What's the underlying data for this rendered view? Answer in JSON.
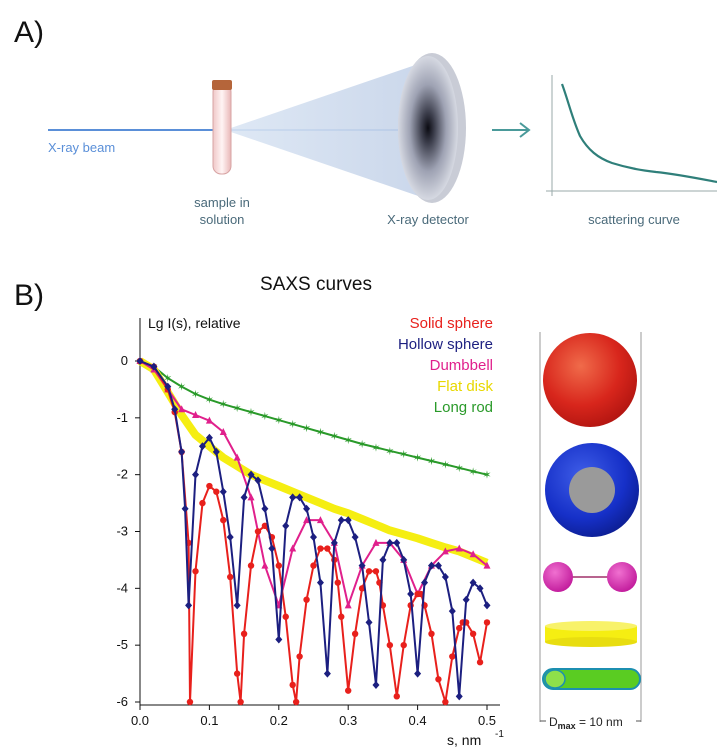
{
  "panel_a": {
    "label": "A)",
    "beam_label": "X-ray beam",
    "sample_label_1": "sample in",
    "sample_label_2": "solution",
    "detector_label": "X-ray detector",
    "curve_label": "scattering curve"
  },
  "panel_b": {
    "label": "B)",
    "dmax_prefix": "D",
    "dmax_sub": "max",
    "dmax_suffix": " = 10 nm"
  },
  "colors": {
    "solid_sphere": "#e8201c",
    "hollow_sphere": "#1c1f80",
    "dumbbell": "#e0208c",
    "flat_disk": "#f5ee12",
    "long_rod": "#2a9a2a",
    "beam": "#5a8fd8",
    "arrow": "#4a9a9a",
    "scatter_line": "#2f7f7a"
  },
  "chart_data": {
    "type": "line",
    "title": "SAXS curves",
    "xlabel": "s, nm",
    "xlabel_sup": "-1",
    "ylabel": "Lg I(s), relative",
    "xlim": [
      0.0,
      0.52
    ],
    "ylim": [
      -6,
      0.3
    ],
    "x_ticks": [
      "0.0",
      "0.1",
      "0.2",
      "0.3",
      "0.4",
      "0.5"
    ],
    "y_ticks": [
      "0",
      "-1",
      "-2",
      "-3",
      "-4",
      "-5",
      "-6"
    ],
    "grid": false,
    "legend_position": "top-right",
    "series": [
      {
        "name": "Solid sphere",
        "color_key": "solid_sphere",
        "marker": "circle",
        "x": [
          0.0,
          0.02,
          0.04,
          0.05,
          0.06,
          0.07,
          0.072,
          0.08,
          0.09,
          0.1,
          0.11,
          0.12,
          0.13,
          0.14,
          0.145,
          0.15,
          0.16,
          0.17,
          0.18,
          0.19,
          0.2,
          0.21,
          0.22,
          0.225,
          0.23,
          0.24,
          0.25,
          0.26,
          0.27,
          0.28,
          0.285,
          0.29,
          0.3,
          0.31,
          0.32,
          0.33,
          0.34,
          0.345,
          0.35,
          0.36,
          0.37,
          0.38,
          0.39,
          0.4,
          0.405,
          0.41,
          0.42,
          0.43,
          0.44,
          0.45,
          0.46,
          0.465,
          0.47,
          0.48,
          0.49,
          0.5
        ],
        "y": [
          0.0,
          -0.1,
          -0.5,
          -0.9,
          -1.6,
          -3.2,
          -6.0,
          -3.7,
          -2.5,
          -2.2,
          -2.3,
          -2.8,
          -3.8,
          -5.5,
          -6.0,
          -4.8,
          -3.6,
          -3.0,
          -2.9,
          -3.1,
          -3.6,
          -4.5,
          -5.7,
          -6.0,
          -5.2,
          -4.2,
          -3.6,
          -3.3,
          -3.3,
          -3.5,
          -3.9,
          -4.5,
          -5.8,
          -4.8,
          -4.0,
          -3.7,
          -3.7,
          -3.9,
          -4.3,
          -5.0,
          -5.9,
          -5.0,
          -4.3,
          -4.1,
          -4.1,
          -4.3,
          -4.8,
          -5.6,
          -6.0,
          -5.2,
          -4.7,
          -4.6,
          -4.6,
          -4.8,
          -5.3,
          -4.6
        ]
      },
      {
        "name": "Hollow sphere",
        "color_key": "hollow_sphere",
        "marker": "diamond",
        "x": [
          0.0,
          0.02,
          0.04,
          0.05,
          0.06,
          0.065,
          0.07,
          0.08,
          0.09,
          0.1,
          0.11,
          0.12,
          0.13,
          0.14,
          0.15,
          0.16,
          0.17,
          0.18,
          0.19,
          0.2,
          0.21,
          0.22,
          0.23,
          0.24,
          0.25,
          0.26,
          0.27,
          0.28,
          0.29,
          0.3,
          0.31,
          0.32,
          0.33,
          0.34,
          0.35,
          0.36,
          0.37,
          0.38,
          0.39,
          0.4,
          0.41,
          0.42,
          0.43,
          0.44,
          0.45,
          0.46,
          0.47,
          0.48,
          0.49,
          0.5
        ],
        "y": [
          0.0,
          -0.1,
          -0.45,
          -0.85,
          -1.6,
          -2.6,
          -4.3,
          -2.0,
          -1.5,
          -1.35,
          -1.6,
          -2.3,
          -3.1,
          -4.3,
          -2.4,
          -2.0,
          -2.1,
          -2.6,
          -3.3,
          -4.9,
          -2.9,
          -2.4,
          -2.4,
          -2.6,
          -3.1,
          -3.9,
          -5.5,
          -3.2,
          -2.8,
          -2.8,
          -3.1,
          -3.6,
          -4.6,
          -5.7,
          -3.5,
          -3.2,
          -3.2,
          -3.5,
          -4.1,
          -5.5,
          -3.9,
          -3.6,
          -3.6,
          -3.8,
          -4.4,
          -5.9,
          -4.2,
          -3.9,
          -4.0,
          -4.3
        ]
      },
      {
        "name": "Dumbbell",
        "color_key": "dumbbell",
        "marker": "triangle",
        "x": [
          0.0,
          0.02,
          0.04,
          0.06,
          0.08,
          0.1,
          0.12,
          0.14,
          0.16,
          0.18,
          0.2,
          0.22,
          0.24,
          0.26,
          0.28,
          0.3,
          0.32,
          0.34,
          0.36,
          0.38,
          0.4,
          0.42,
          0.44,
          0.46,
          0.48,
          0.5
        ],
        "y": [
          0.0,
          -0.15,
          -0.5,
          -0.85,
          -0.95,
          -1.05,
          -1.25,
          -1.7,
          -2.4,
          -3.6,
          -4.3,
          -3.3,
          -2.8,
          -2.8,
          -3.2,
          -4.3,
          -3.6,
          -3.2,
          -3.2,
          -3.5,
          -4.1,
          -3.6,
          -3.35,
          -3.3,
          -3.4,
          -3.6
        ]
      },
      {
        "name": "Flat disk",
        "color_key": "flat_disk",
        "marker": "none",
        "x": [
          0.0,
          0.02,
          0.04,
          0.06,
          0.08,
          0.1,
          0.12,
          0.14,
          0.16,
          0.18,
          0.2,
          0.22,
          0.24,
          0.26,
          0.28,
          0.3,
          0.32,
          0.34,
          0.36,
          0.38,
          0.4,
          0.42,
          0.44,
          0.46,
          0.48,
          0.5
        ],
        "y": [
          0.0,
          -0.15,
          -0.55,
          -0.95,
          -1.3,
          -1.5,
          -1.7,
          -1.85,
          -2.0,
          -2.1,
          -2.2,
          -2.3,
          -2.4,
          -2.5,
          -2.6,
          -2.68,
          -2.78,
          -2.88,
          -2.98,
          -3.05,
          -3.12,
          -3.2,
          -3.28,
          -3.35,
          -3.45,
          -3.55
        ]
      },
      {
        "name": "Long rod",
        "color_key": "long_rod",
        "marker": "star",
        "x": [
          0.0,
          0.02,
          0.04,
          0.06,
          0.08,
          0.1,
          0.12,
          0.14,
          0.16,
          0.18,
          0.2,
          0.22,
          0.24,
          0.26,
          0.28,
          0.3,
          0.32,
          0.34,
          0.36,
          0.38,
          0.4,
          0.42,
          0.44,
          0.46,
          0.48,
          0.5
        ],
        "y": [
          0.0,
          -0.1,
          -0.3,
          -0.45,
          -0.58,
          -0.68,
          -0.76,
          -0.83,
          -0.9,
          -0.97,
          -1.04,
          -1.11,
          -1.18,
          -1.25,
          -1.32,
          -1.39,
          -1.46,
          -1.52,
          -1.58,
          -1.64,
          -1.7,
          -1.76,
          -1.82,
          -1.88,
          -1.94,
          -2.0
        ]
      }
    ]
  }
}
